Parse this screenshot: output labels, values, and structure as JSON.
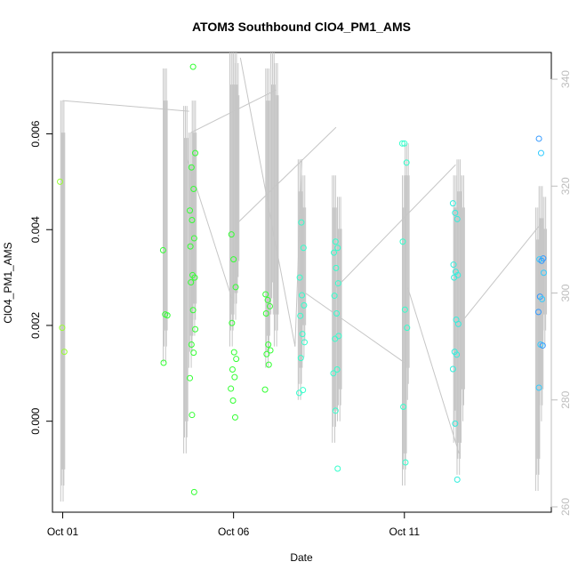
{
  "chart_data": {
    "type": "scatter",
    "title": "ATOM3 Southbound ClO4_PM1_AMS",
    "xlabel": "Date",
    "ylabel": "ClO4_PM1_AMS",
    "x_range_days": [
      -0.3,
      14.3
    ],
    "x_ticks": [
      {
        "day": 0,
        "label": "Oct 01"
      },
      {
        "day": 5,
        "label": "Oct 06"
      },
      {
        "day": 10,
        "label": "Oct 11"
      }
    ],
    "y_range": [
      -0.0019,
      0.0077
    ],
    "y_ticks": [
      "0.000",
      "0.002",
      "0.004",
      "0.006"
    ],
    "y2_range": [
      259,
      345
    ],
    "y2_ticks": [
      "260",
      "280",
      "300",
      "320",
      "340"
    ],
    "grid": false,
    "series": [
      {
        "color_scale": [
          "#99ff33",
          "#33ff33",
          "#33ffcc",
          "#33ccff",
          "#3399ff"
        ],
        "points": [
          [
            0.0,
            0.005
          ],
          [
            0.0,
            0.00195
          ],
          [
            0.0,
            0.00145
          ],
          [
            3.0,
            0.00357
          ],
          [
            3.0,
            0.00223
          ],
          [
            3.0,
            0.00221
          ],
          [
            3.0,
            0.00122
          ],
          [
            3.8,
            0.0074
          ],
          [
            3.8,
            0.0056
          ],
          [
            3.8,
            0.0053
          ],
          [
            3.8,
            0.00485
          ],
          [
            3.8,
            0.0044
          ],
          [
            3.8,
            0.0042
          ],
          [
            3.8,
            0.00382
          ],
          [
            3.8,
            0.00365
          ],
          [
            3.8,
            0.00305
          ],
          [
            3.8,
            0.003
          ],
          [
            3.8,
            0.0029
          ],
          [
            3.8,
            0.00232
          ],
          [
            3.8,
            0.00192
          ],
          [
            3.8,
            0.0016
          ],
          [
            3.8,
            0.00143
          ],
          [
            3.8,
            0.0009
          ],
          [
            3.8,
            0.00013
          ],
          [
            3.8,
            -0.00148
          ],
          [
            5.0,
            0.0039
          ],
          [
            5.0,
            0.00338
          ],
          [
            5.0,
            0.0028
          ],
          [
            5.0,
            0.00205
          ],
          [
            5.0,
            0.00144
          ],
          [
            5.0,
            0.0013
          ],
          [
            5.0,
            0.00108
          ],
          [
            5.0,
            0.00092
          ],
          [
            5.0,
            0.00068
          ],
          [
            5.0,
            0.00043
          ],
          [
            5.0,
            8e-05
          ],
          [
            6.0,
            0.00265
          ],
          [
            6.0,
            0.00253
          ],
          [
            6.0,
            0.0024
          ],
          [
            6.0,
            0.00225
          ],
          [
            6.0,
            0.0016
          ],
          [
            6.0,
            0.00148
          ],
          [
            6.0,
            0.0014
          ],
          [
            6.0,
            0.00118
          ],
          [
            6.0,
            0.00066
          ],
          [
            7.0,
            0.00415
          ],
          [
            7.0,
            0.00362
          ],
          [
            7.0,
            0.003
          ],
          [
            7.0,
            0.00263
          ],
          [
            7.0,
            0.00242
          ],
          [
            7.0,
            0.0022
          ],
          [
            7.0,
            0.00182
          ],
          [
            7.0,
            0.00165
          ],
          [
            7.0,
            0.00132
          ],
          [
            7.0,
            0.00065
          ],
          [
            7.0,
            0.00059
          ],
          [
            8.0,
            0.00375
          ],
          [
            8.0,
            0.00362
          ],
          [
            8.0,
            0.00352
          ],
          [
            8.0,
            0.0032
          ],
          [
            8.0,
            0.00288
          ],
          [
            8.0,
            0.00262
          ],
          [
            8.0,
            0.00225
          ],
          [
            8.0,
            0.00178
          ],
          [
            8.0,
            0.00172
          ],
          [
            8.0,
            0.00108
          ],
          [
            8.0,
            0.001
          ],
          [
            8.0,
            0.00022
          ],
          [
            8.0,
            -0.00099
          ],
          [
            10.0,
            0.0058
          ],
          [
            10.0,
            0.0058
          ],
          [
            10.0,
            0.0054
          ],
          [
            10.0,
            0.00375
          ],
          [
            10.0,
            0.00233
          ],
          [
            10.0,
            0.00195
          ],
          [
            10.0,
            0.0003
          ],
          [
            10.0,
            -0.00086
          ],
          [
            11.5,
            0.00455
          ],
          [
            11.5,
            0.00435
          ],
          [
            11.5,
            0.00422
          ],
          [
            11.5,
            0.00327
          ],
          [
            11.5,
            0.00312
          ],
          [
            11.5,
            0.00305
          ],
          [
            11.5,
            0.003
          ],
          [
            11.5,
            0.00212
          ],
          [
            11.5,
            0.00203
          ],
          [
            11.5,
            0.00145
          ],
          [
            11.5,
            0.00139
          ],
          [
            11.5,
            0.00109
          ],
          [
            11.5,
            -5e-05
          ],
          [
            11.5,
            -0.00122
          ],
          [
            14.0,
            0.0059
          ],
          [
            14.0,
            0.0056
          ],
          [
            14.0,
            0.0034
          ],
          [
            14.0,
            0.00338
          ],
          [
            14.0,
            0.00335
          ],
          [
            14.0,
            0.0031
          ],
          [
            14.0,
            0.0026
          ],
          [
            14.0,
            0.00255
          ],
          [
            14.0,
            0.00228
          ],
          [
            14.0,
            0.0016
          ],
          [
            14.0,
            0.00158
          ],
          [
            14.0,
            0.0007
          ]
        ]
      }
    ]
  }
}
